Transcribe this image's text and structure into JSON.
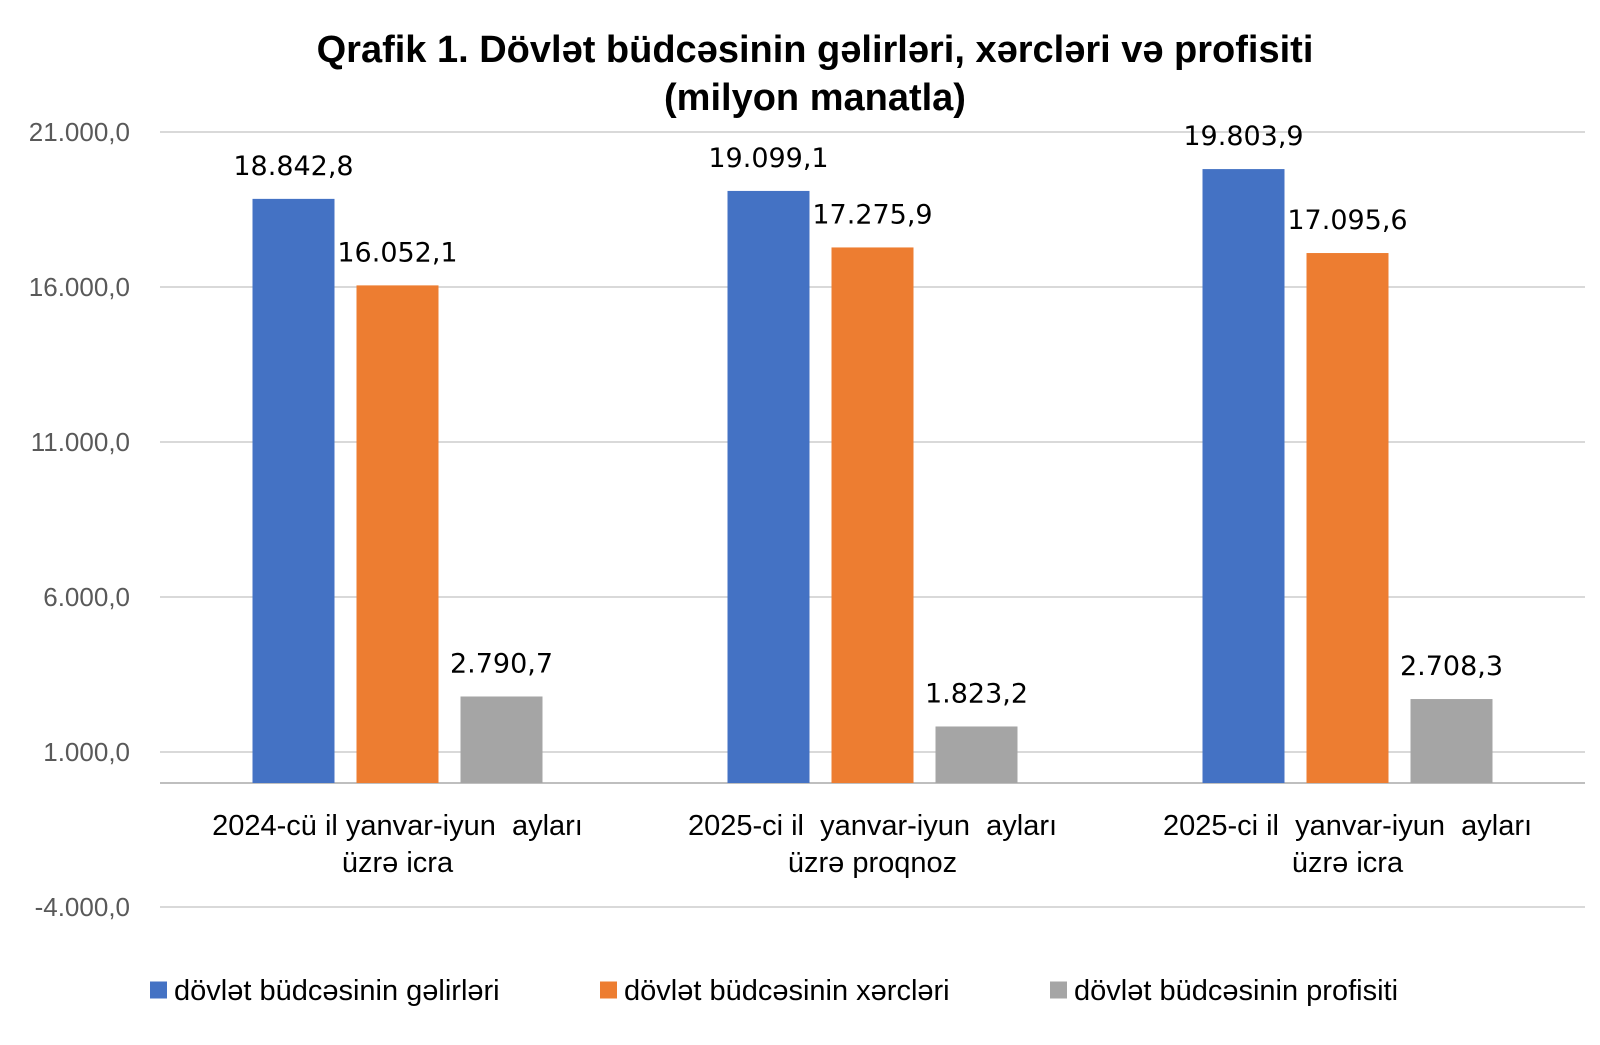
{
  "chart_data": {
    "type": "bar",
    "title": [
      "Qrafik 1. Dövlət büdcəsinin gəlirləri, xərcləri və profisiti",
      "(milyon manatla)"
    ],
    "categories": [
      [
        "2024-cü il yanvar-iyun  ayları",
        "üzrə icra"
      ],
      [
        "2025-ci il  yanvar-iyun  ayları",
        "üzrə proqnoz"
      ],
      [
        "2025-ci il  yanvar-iyun  ayları",
        "üzrə icra"
      ]
    ],
    "series": [
      {
        "name": "dövlət büdcəsinin gəlirləri",
        "color": "#4472c4",
        "values": [
          18842.8,
          19099.1,
          19803.9
        ],
        "labels": [
          "18.842,8",
          "19.099,1",
          "19.803,9"
        ]
      },
      {
        "name": "dövlət büdcəsinin xərcləri",
        "color": "#ed7d31",
        "values": [
          16052.1,
          17275.9,
          17095.6
        ],
        "labels": [
          "16.052,1",
          "17.275,9",
          "17.095,6"
        ]
      },
      {
        "name": "dövlət büdcəsinin profisiti",
        "color": "#a5a5a5",
        "values": [
          2790.7,
          1823.2,
          2708.3
        ],
        "labels": [
          "2.790,7",
          "1.823,2",
          "2.708,3"
        ]
      }
    ],
    "y_ticks": [
      21000,
      16000,
      11000,
      6000,
      1000,
      -4000
    ],
    "y_tick_labels": [
      "21.000,0",
      "16.000,0",
      "11.000,0",
      "6.000,0",
      "1.000,0",
      "-4.000,0"
    ],
    "ylim": [
      -4000,
      21000
    ],
    "category_axis_at": 0,
    "grid": true,
    "legend_position": "bottom"
  }
}
